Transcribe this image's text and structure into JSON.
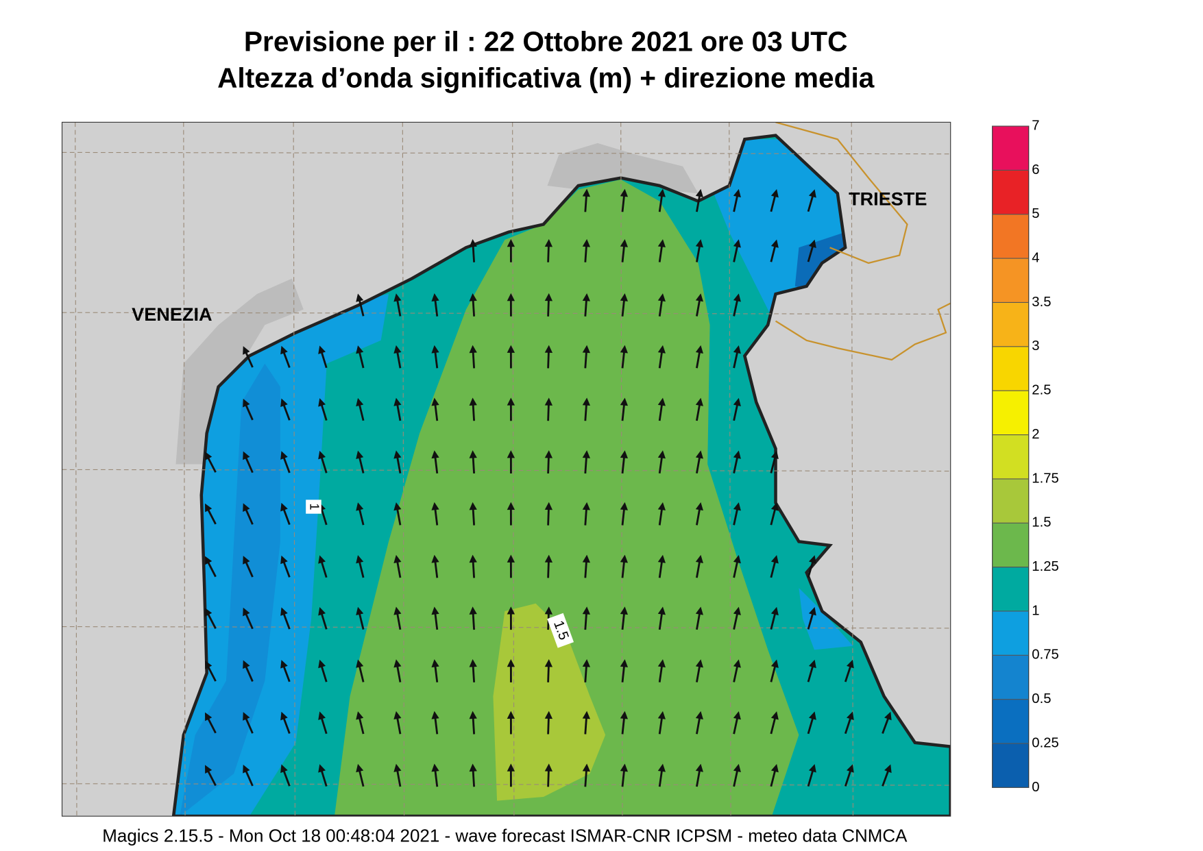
{
  "title": "Previsione per il  :  22  Ottobre  2021   ore 03 UTC",
  "subtitle": "Altezza d’onda significativa (m) + direzione media",
  "places": [
    "VENEZIA",
    "TRIESTE"
  ],
  "contour_labels": [
    "1",
    "1.5"
  ],
  "colorbar": {
    "levels": [
      0,
      0.25,
      0.5,
      0.75,
      1,
      1.25,
      1.5,
      1.75,
      2,
      2.5,
      3,
      3.5,
      4,
      5,
      6,
      7
    ],
    "colors": [
      "#0b5fae",
      "#0a6fc0",
      "#1484cf",
      "#0e9fe0",
      "#00aaa0",
      "#6cb84c",
      "#a8c83a",
      "#d2df22",
      "#f6f000",
      "#f8d600",
      "#f7b318",
      "#f59424",
      "#f27624",
      "#e82226",
      "#e8105c"
    ]
  },
  "footer": "Magics 2.15.5 - Mon Oct 18 00:48:04 2021 - wave forecast  ISMAR-CNR  ICPSM - meteo data   CNMCA"
}
